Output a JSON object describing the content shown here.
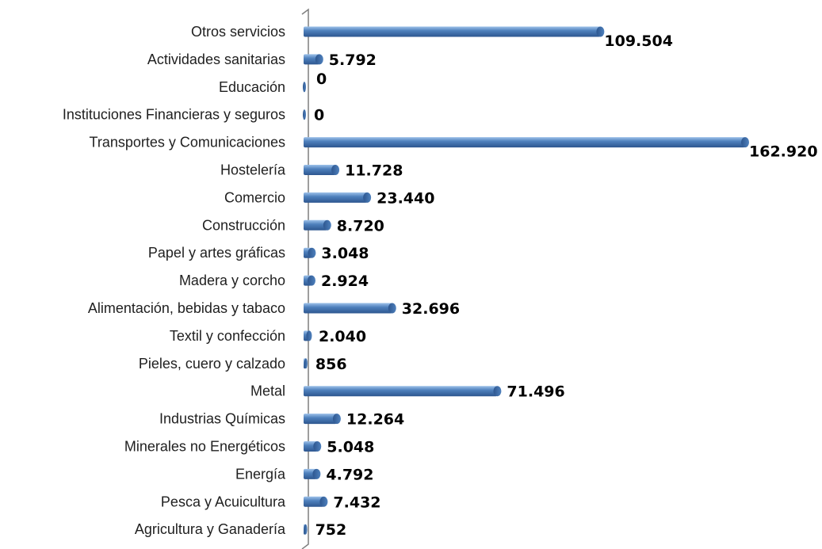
{
  "chart_data": {
    "type": "bar",
    "orientation": "horizontal",
    "categories": [
      "Otros servicios",
      "Actividades sanitarias",
      "Educación",
      "Instituciones Financieras y seguros",
      "Transportes y Comunicaciones",
      "Hostelería",
      "Comercio",
      "Construcción",
      "Papel y artes gráficas",
      "Madera y corcho",
      "Alimentación, bebidas y tabaco",
      "Textil y confección",
      "Pieles, cuero y calzado",
      "Metal",
      "Industrias Químicas",
      "Minerales no Energéticos",
      "Energía",
      "Pesca y Acuicultura",
      "Agricultura y Ganadería"
    ],
    "values": [
      109504,
      5792,
      0,
      0,
      162920,
      11728,
      23440,
      8720,
      3048,
      2924,
      32696,
      2040,
      856,
      71496,
      12264,
      5048,
      4792,
      7432,
      752
    ],
    "data_labels": [
      "109.504",
      "5.792",
      "0",
      "0",
      "162.920",
      "11.728",
      "23.440",
      "8.720",
      "3.048",
      "2.924",
      "32.696",
      "2.040",
      "856",
      "71.496",
      "12.264",
      "5.048",
      "4.792",
      "7.432",
      "752"
    ],
    "xlim": [
      0,
      162920
    ],
    "grid": false,
    "legend": "none",
    "bar_color": "#4f81bd",
    "bar_highlight": "#9ec2ea",
    "bar_shadow": "#2d568f",
    "axis_color": "#7f7f7f"
  }
}
